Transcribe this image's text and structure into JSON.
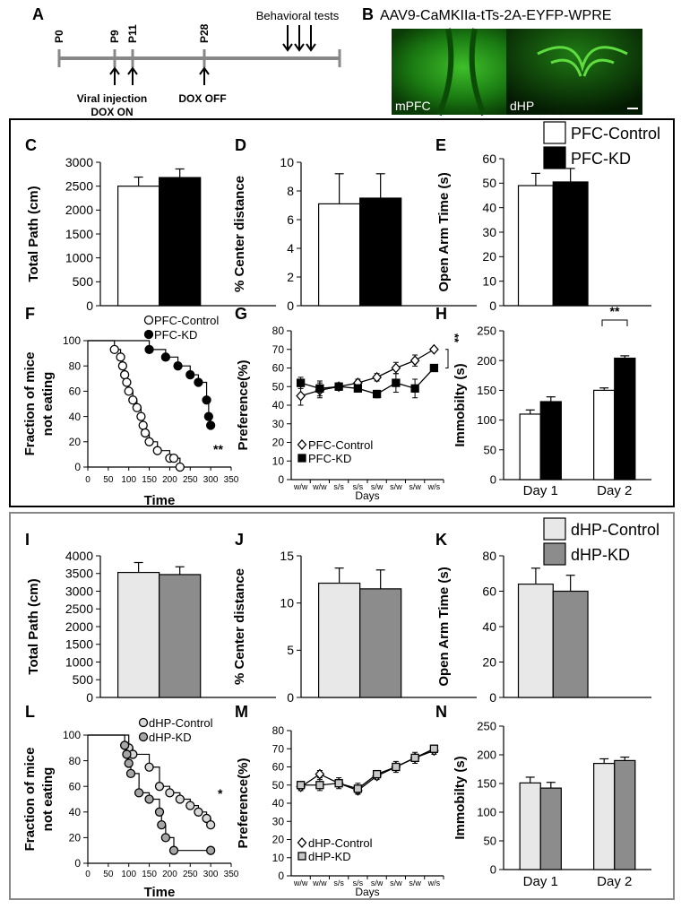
{
  "panel_a": {
    "letter": "A",
    "timepoints": [
      "P0",
      "P9",
      "P11",
      "P28"
    ],
    "tests": "Behavioral tests",
    "injection": [
      "Viral injection",
      "DOX ON"
    ],
    "dox_off": "DOX OFF"
  },
  "panel_b": {
    "letter": "B",
    "title": "AAV9-CaMKIIa-tTs-2A-EYFP-WPRE",
    "images": [
      "mPFC",
      "dHP"
    ]
  },
  "chart_data": [
    {
      "type": "bar",
      "letter": "C",
      "ylabel": "Total Path (cm)",
      "ylim": [
        0,
        3000
      ],
      "yticks": [
        0,
        500,
        1000,
        1500,
        2000,
        2500,
        3000
      ],
      "series": [
        {
          "color": "#ffffff",
          "values": [
            2500
          ],
          "errors": [
            190
          ]
        },
        {
          "color": "#000000",
          "values": [
            2680
          ],
          "errors": [
            180
          ]
        }
      ]
    },
    {
      "type": "bar",
      "letter": "D",
      "ylabel": "% Center distance",
      "ylim": [
        0,
        10
      ],
      "yticks": [
        0,
        2,
        4,
        6,
        8,
        10
      ],
      "series": [
        {
          "color": "#ffffff",
          "values": [
            7.1
          ],
          "errors": [
            2.1
          ]
        },
        {
          "color": "#000000",
          "values": [
            7.5
          ],
          "errors": [
            1.7
          ]
        }
      ]
    },
    {
      "type": "bar",
      "letter": "E",
      "ylabel": "Open Arm Time (s)",
      "ylim": [
        0,
        60
      ],
      "yticks": [
        0,
        10,
        20,
        30,
        40,
        50,
        60
      ],
      "series": [
        {
          "name": "PFC-Control",
          "color": "#ffffff",
          "values": [
            49
          ],
          "errors": [
            5
          ]
        },
        {
          "name": "PFC-KD",
          "color": "#000000",
          "values": [
            50.5
          ],
          "errors": [
            5.5
          ]
        }
      ]
    },
    {
      "type": "step",
      "letter": "F",
      "ylabel": [
        "Fraction of mice",
        "not eating"
      ],
      "xlabel": "Time",
      "xlim": [
        0,
        350
      ],
      "xticks": [
        0,
        50,
        100,
        150,
        200,
        250,
        300,
        350
      ],
      "ylim": [
        0,
        100
      ],
      "yticks": [
        0,
        20,
        40,
        60,
        80,
        100
      ],
      "annotation": "**",
      "series": [
        {
          "name": "PFC-Control",
          "color": "#ffffff",
          "x": [
            0,
            65,
            80,
            85,
            90,
            95,
            100,
            110,
            120,
            130,
            135,
            140,
            150,
            170,
            200,
            210,
            225
          ],
          "values": [
            100,
            93,
            87,
            80,
            73,
            67,
            60,
            53,
            47,
            40,
            33,
            27,
            20,
            13,
            7,
            7,
            0
          ]
        },
        {
          "name": "PFC-KD",
          "color": "#000000",
          "x": [
            0,
            150,
            190,
            220,
            250,
            270,
            290,
            295,
            300
          ],
          "values": [
            100,
            93,
            87,
            80,
            73,
            67,
            53,
            40,
            33
          ]
        }
      ]
    },
    {
      "type": "line",
      "letter": "G",
      "ylabel": "Preference(%)",
      "xlabel": "Days",
      "categories": [
        "w/w",
        "w/w",
        "s/s",
        "s/s",
        "s/w",
        "s/w",
        "s/w",
        "w/s"
      ],
      "ylim": [
        0,
        80
      ],
      "yticks": [
        0,
        10,
        20,
        30,
        40,
        50,
        60,
        70,
        80
      ],
      "annotation": "**",
      "series": [
        {
          "name": "PFC-Control",
          "color": "#ffffff",
          "marker": "diamond",
          "values": [
            45,
            48,
            50,
            52,
            55,
            60,
            64,
            70
          ],
          "errors": [
            5,
            4,
            2,
            2,
            2,
            3,
            3,
            1
          ]
        },
        {
          "name": "PFC-KD",
          "color": "#000000",
          "marker": "square",
          "values": [
            52,
            49,
            50,
            49,
            46,
            52,
            49,
            60
          ],
          "errors": [
            3,
            4,
            2,
            2,
            2,
            5,
            5,
            1
          ]
        }
      ]
    },
    {
      "type": "bar",
      "letter": "H",
      "ylabel": "Immobilty (s)",
      "categories": [
        "Day 1",
        "Day 2"
      ],
      "ylim": [
        0,
        250
      ],
      "yticks": [
        0,
        50,
        100,
        150,
        200,
        250
      ],
      "annotation": "**",
      "series": [
        {
          "color": "#ffffff",
          "values": [
            110,
            150
          ],
          "errors": [
            7,
            4
          ]
        },
        {
          "color": "#000000",
          "values": [
            131,
            204
          ],
          "errors": [
            8,
            4
          ]
        }
      ]
    },
    {
      "type": "bar",
      "letter": "I",
      "ylabel": "Total Path (cm)",
      "ylim": [
        0,
        4000
      ],
      "yticks": [
        0,
        500,
        1000,
        1500,
        2000,
        2500,
        3000,
        3500,
        4000
      ],
      "series": [
        {
          "color": "#e8e8e8",
          "values": [
            3530
          ],
          "errors": [
            280
          ]
        },
        {
          "color": "#8c8c8c",
          "values": [
            3470
          ],
          "errors": [
            220
          ]
        }
      ]
    },
    {
      "type": "bar",
      "letter": "J",
      "ylabel": "% Center distance",
      "ylim": [
        0,
        15
      ],
      "yticks": [
        0,
        5,
        10,
        15
      ],
      "series": [
        {
          "color": "#e8e8e8",
          "values": [
            12.1
          ],
          "errors": [
            1.6
          ]
        },
        {
          "color": "#8c8c8c",
          "values": [
            11.5
          ],
          "errors": [
            2.0
          ]
        }
      ]
    },
    {
      "type": "bar",
      "letter": "K",
      "ylabel": "Open Arm Time (s)",
      "ylim": [
        0,
        80
      ],
      "yticks": [
        0,
        20,
        40,
        60,
        80
      ],
      "series": [
        {
          "name": "dHP-Control",
          "color": "#e8e8e8",
          "values": [
            64
          ],
          "errors": [
            9
          ]
        },
        {
          "name": "dHP-KD",
          "color": "#8c8c8c",
          "values": [
            60
          ],
          "errors": [
            9
          ]
        }
      ]
    },
    {
      "type": "step",
      "letter": "L",
      "ylabel": [
        "Fraction of mice",
        "not eating"
      ],
      "xlabel": "Time",
      "xlim": [
        0,
        350
      ],
      "xticks": [
        0,
        50,
        100,
        150,
        200,
        250,
        300,
        350
      ],
      "ylim": [
        0,
        100
      ],
      "yticks": [
        0,
        20,
        40,
        60,
        80,
        100
      ],
      "annotation": "*",
      "series": [
        {
          "name": "dHP-Control",
          "color": "#d9d9d9",
          "x": [
            0,
            100,
            110,
            150,
            175,
            200,
            225,
            250,
            270,
            290,
            300
          ],
          "values": [
            100,
            90,
            85,
            75,
            60,
            55,
            50,
            45,
            40,
            35,
            30
          ]
        },
        {
          "name": "dHP-KD",
          "color": "#a6a6a6",
          "x": [
            0,
            90,
            95,
            100,
            105,
            125,
            150,
            175,
            180,
            190,
            210,
            300
          ],
          "values": [
            100,
            92,
            85,
            78,
            70,
            55,
            50,
            40,
            30,
            20,
            10,
            10
          ]
        }
      ]
    },
    {
      "type": "line",
      "letter": "M",
      "ylabel": "Preference(%)",
      "xlabel": "Days",
      "categories": [
        "w/w",
        "w/w",
        "s/s",
        "s/s",
        "s/w",
        "s/w",
        "s/w",
        "w/s"
      ],
      "ylim": [
        0,
        80
      ],
      "yticks": [
        0,
        10,
        20,
        30,
        40,
        50,
        60,
        70,
        80
      ],
      "series": [
        {
          "name": "dHP-Control",
          "color": "#ffffff",
          "marker": "diamond",
          "values": [
            49,
            56,
            51,
            47,
            55,
            60,
            65,
            69
          ],
          "errors": [
            2,
            2,
            2,
            2,
            2,
            2,
            2,
            2
          ]
        },
        {
          "name": "dHP-KD",
          "color": "#c8c8c8",
          "marker": "square",
          "values": [
            50,
            50,
            51,
            48,
            56,
            60,
            65,
            70
          ],
          "errors": [
            2,
            3,
            3,
            3,
            2,
            3,
            3,
            2
          ]
        }
      ]
    },
    {
      "type": "bar",
      "letter": "N",
      "ylabel": "Immobilty (s)",
      "categories": [
        "Day 1",
        "Day 2"
      ],
      "ylim": [
        0,
        250
      ],
      "yticks": [
        0,
        50,
        100,
        150,
        200,
        250
      ],
      "series": [
        {
          "color": "#e8e8e8",
          "values": [
            151,
            185
          ],
          "errors": [
            10,
            8
          ]
        },
        {
          "color": "#8c8c8c",
          "values": [
            142,
            190
          ],
          "errors": [
            10,
            6
          ]
        }
      ]
    }
  ]
}
